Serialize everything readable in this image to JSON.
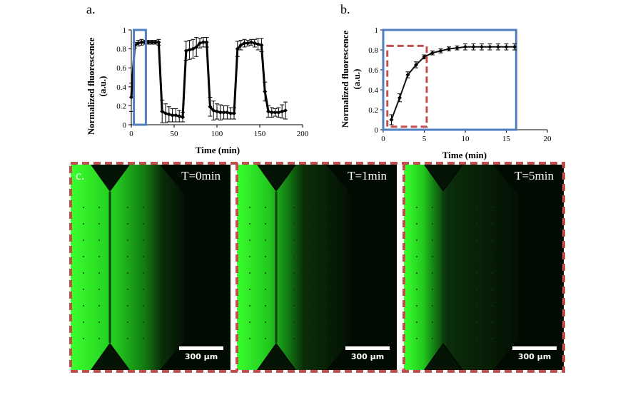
{
  "panels": {
    "a": "a.",
    "b": "b.",
    "c": "c."
  },
  "colors": {
    "highlight_blue": "#4f7fc2",
    "highlight_red": "#c0504d",
    "fluorescence": "#22c81e"
  },
  "chart_data": [
    {
      "id": "a",
      "type": "line",
      "xlabel": "Time (min)",
      "ylabel": "Normalized fluorescence (a.u.)",
      "xlim": [
        0,
        200
      ],
      "ylim": [
        0,
        1
      ],
      "xticks": [
        "0",
        "50",
        "100",
        "150",
        "200"
      ],
      "yticks": [
        "0",
        "0.2",
        "0.4",
        "0.6",
        "0.8",
        "1"
      ],
      "grid": false,
      "series": [
        {
          "x": [
            0,
            4,
            8,
            12,
            16,
            20,
            24,
            28,
            32,
            36,
            40,
            44,
            48,
            52,
            56,
            60,
            64,
            68,
            72,
            76,
            80,
            84,
            88,
            92,
            96,
            100,
            104,
            108,
            112,
            116,
            120,
            124,
            128,
            132,
            136,
            140,
            144,
            148,
            152,
            156,
            160,
            164,
            168,
            172,
            176,
            180
          ],
          "y": [
            0.29,
            0.84,
            0.86,
            0.87,
            0.87,
            0.87,
            0.87,
            0.87,
            0.87,
            0.14,
            0.12,
            0.11,
            0.1,
            0.1,
            0.09,
            0.08,
            0.78,
            0.79,
            0.8,
            0.82,
            0.86,
            0.87,
            0.87,
            0.19,
            0.15,
            0.14,
            0.13,
            0.13,
            0.13,
            0.12,
            0.12,
            0.8,
            0.84,
            0.86,
            0.86,
            0.87,
            0.86,
            0.85,
            0.84,
            0.35,
            0.14,
            0.13,
            0.13,
            0.13,
            0.14,
            0.15
          ],
          "err": [
            0.15,
            0.03,
            0.03,
            0.03,
            0.02,
            0.02,
            0.02,
            0.02,
            0.03,
            0.12,
            0.1,
            0.08,
            0.07,
            0.07,
            0.06,
            0.05,
            0.1,
            0.1,
            0.1,
            0.1,
            0.05,
            0.05,
            0.05,
            0.1,
            0.1,
            0.08,
            0.08,
            0.07,
            0.07,
            0.06,
            0.06,
            0.08,
            0.05,
            0.04,
            0.03,
            0.03,
            0.04,
            0.06,
            0.07,
            0.1,
            0.06,
            0.05,
            0.04,
            0.05,
            0.07,
            0.09
          ]
        }
      ],
      "highlight_x": [
        3,
        17
      ],
      "highlight_color": "blue"
    },
    {
      "id": "b",
      "type": "line",
      "xlabel": "Time (min)",
      "ylabel": "Normalized fluorescence (a.u.)",
      "xlim": [
        0,
        20
      ],
      "ylim": [
        0,
        1
      ],
      "xticks": [
        "0",
        "5",
        "10",
        "15",
        "20"
      ],
      "yticks": [
        "0",
        "0.2",
        "0.4",
        "0.6",
        "0.8",
        "1"
      ],
      "grid": false,
      "series": [
        {
          "x": [
            1,
            2,
            3,
            4,
            5,
            6,
            7,
            8,
            9,
            10,
            11,
            12,
            13,
            14,
            15,
            16
          ],
          "y": [
            0.1,
            0.32,
            0.55,
            0.65,
            0.73,
            0.77,
            0.79,
            0.81,
            0.82,
            0.83,
            0.83,
            0.83,
            0.83,
            0.83,
            0.83,
            0.83
          ],
          "err": [
            0.05,
            0.04,
            0.03,
            0.03,
            0.02,
            0.02,
            0.02,
            0.02,
            0.02,
            0.03,
            0.03,
            0.03,
            0.03,
            0.03,
            0.03,
            0.03
          ]
        }
      ],
      "blue_box_x": [
        0,
        16.2
      ],
      "red_box": {
        "x": [
          0.5,
          5.3
        ],
        "y": [
          0.03,
          0.84
        ]
      }
    }
  ],
  "images": [
    {
      "time_label": "T=0min",
      "scale_label": "300 µm",
      "front": 0.72
    },
    {
      "time_label": "T=1min",
      "scale_label": "300 µm",
      "front": 0.5
    },
    {
      "time_label": "T=5min",
      "scale_label": "300 µm",
      "front": 0.3
    }
  ]
}
